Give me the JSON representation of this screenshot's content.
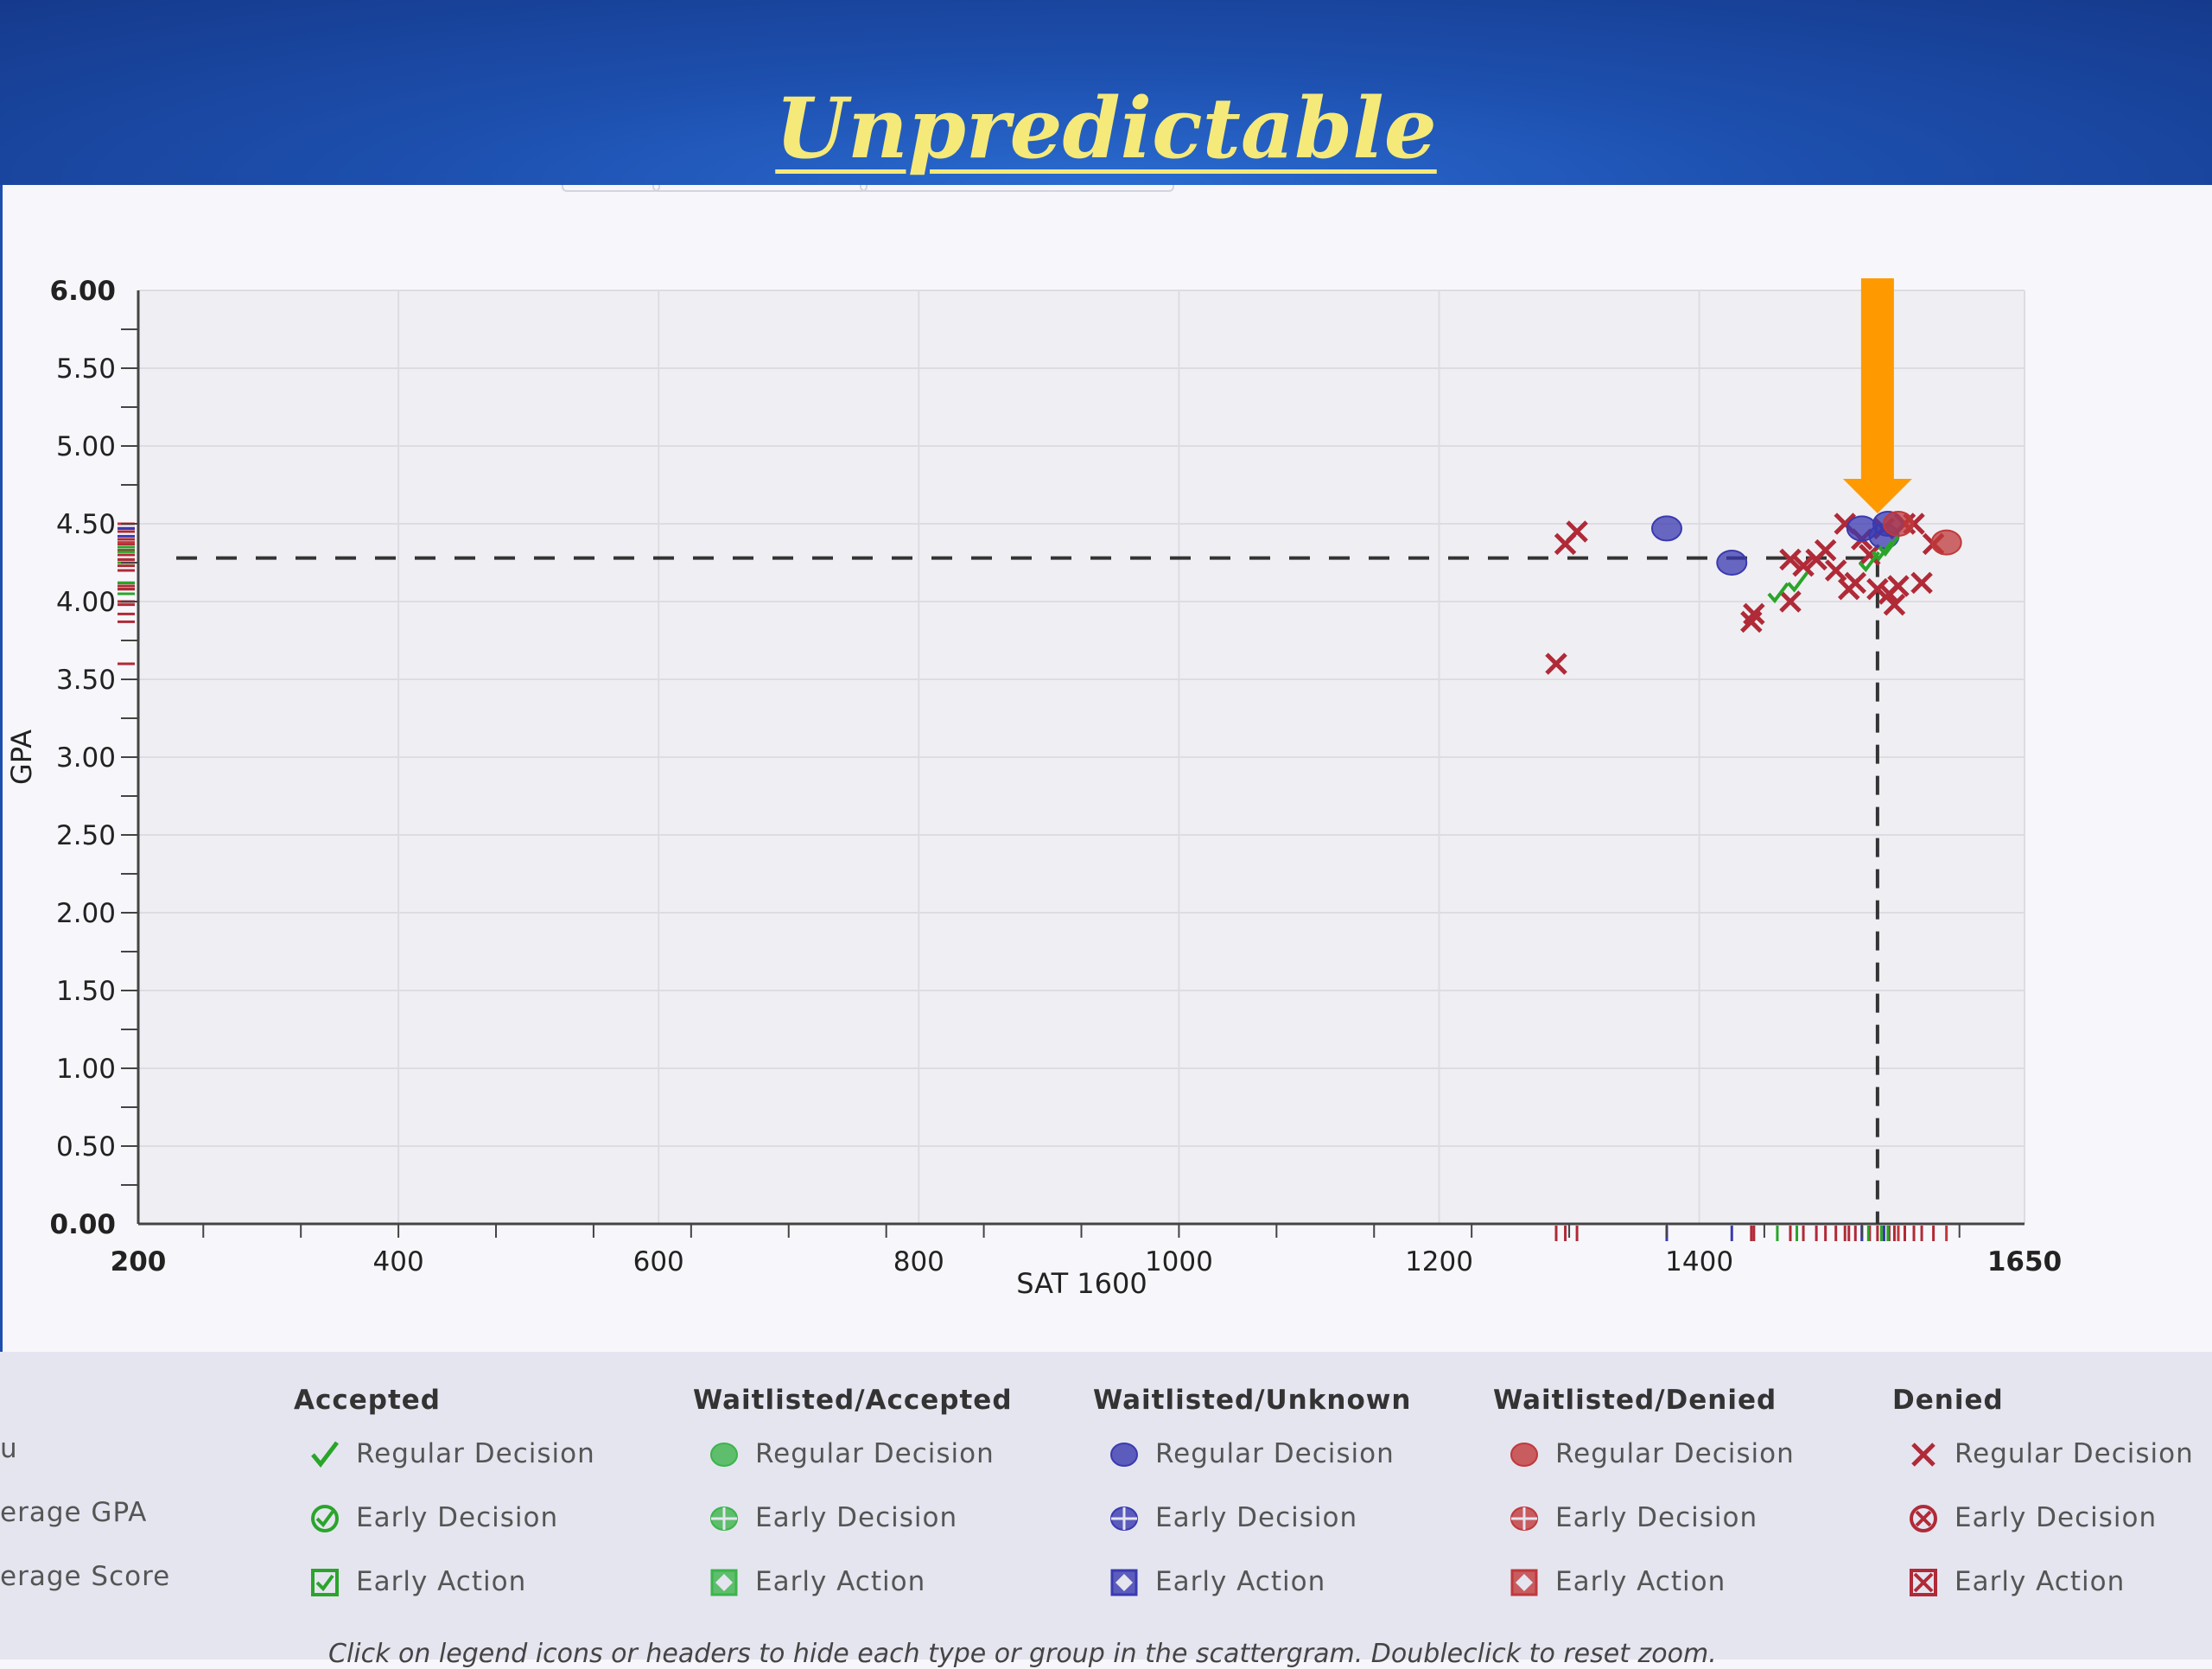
{
  "slide": {
    "title": "Unpredictable"
  },
  "colors": {
    "header_blue": "#1d4fae",
    "title_yellow": "#f5e97a",
    "accepted": "#2aa52a",
    "waitlisted_accepted": "#3cb44b",
    "waitlisted_unknown": "#3a3ab0",
    "waitlisted_denied": "#c0393b",
    "denied": "#b02a37",
    "arrow_orange": "#ff9900"
  },
  "chart_data": {
    "type": "scatter",
    "xlabel": "SAT 1600",
    "ylabel": "GPA",
    "xlim": [
      200,
      1650
    ],
    "ylim": [
      0,
      6
    ],
    "x_ticks": [
      {
        "value": 200,
        "label": "200",
        "bold": true
      },
      {
        "value": 400,
        "label": "400",
        "bold": false
      },
      {
        "value": 600,
        "label": "600",
        "bold": false
      },
      {
        "value": 800,
        "label": "800",
        "bold": false
      },
      {
        "value": 1000,
        "label": "1000",
        "bold": false
      },
      {
        "value": 1200,
        "label": "1200",
        "bold": false
      },
      {
        "value": 1400,
        "label": "1400",
        "bold": false
      },
      {
        "value": 1650,
        "label": "1650",
        "bold": true
      }
    ],
    "y_ticks": [
      {
        "value": 0,
        "label": "0.00",
        "bold": true
      },
      {
        "value": 0.5,
        "label": "0.50",
        "bold": false
      },
      {
        "value": 1.0,
        "label": "1.00",
        "bold": false
      },
      {
        "value": 1.5,
        "label": "1.50",
        "bold": false
      },
      {
        "value": 2.0,
        "label": "2.00",
        "bold": false
      },
      {
        "value": 2.5,
        "label": "2.50",
        "bold": false
      },
      {
        "value": 3.0,
        "label": "3.00",
        "bold": false
      },
      {
        "value": 3.5,
        "label": "3.50",
        "bold": false
      },
      {
        "value": 4.0,
        "label": "4.00",
        "bold": false
      },
      {
        "value": 4.5,
        "label": "4.50",
        "bold": false
      },
      {
        "value": 5.0,
        "label": "5.00",
        "bold": false
      },
      {
        "value": 5.5,
        "label": "5.50",
        "bold": false
      },
      {
        "value": 6.0,
        "label": "6.00",
        "bold": true
      }
    ],
    "grid": true,
    "average_gpa_line": 4.28,
    "highlight_x": 1537,
    "arrow_annotation_x": 1537,
    "series": [
      {
        "group": "Denied",
        "type": "Regular Decision",
        "marker": "x",
        "points": [
          [
            1290,
            3.6
          ],
          [
            1297,
            4.37
          ],
          [
            1306,
            4.45
          ],
          [
            1440,
            3.87
          ],
          [
            1442,
            3.92
          ],
          [
            1470,
            4.0
          ],
          [
            1470,
            4.27
          ],
          [
            1480,
            4.23
          ],
          [
            1490,
            4.27
          ],
          [
            1497,
            4.33
          ],
          [
            1505,
            4.2
          ],
          [
            1512,
            4.5
          ],
          [
            1515,
            4.08
          ],
          [
            1520,
            4.12
          ],
          [
            1525,
            4.4
          ],
          [
            1531,
            4.3
          ],
          [
            1537,
            4.08
          ],
          [
            1542,
            4.47
          ],
          [
            1546,
            4.05
          ],
          [
            1550,
            3.98
          ],
          [
            1553,
            4.1
          ],
          [
            1558,
            4.5
          ],
          [
            1565,
            4.5
          ],
          [
            1571,
            4.12
          ],
          [
            1580,
            4.37
          ]
        ]
      },
      {
        "group": "Waitlisted/Unknown",
        "type": "Regular Decision",
        "marker": "circle",
        "points": [
          [
            1375,
            4.47
          ],
          [
            1425,
            4.25
          ],
          [
            1525,
            4.47
          ],
          [
            1545,
            4.5
          ],
          [
            1542,
            4.42
          ]
        ]
      },
      {
        "group": "Waitlisted/Denied",
        "type": "Regular Decision",
        "marker": "circle",
        "points": [
          [
            1553,
            4.5
          ],
          [
            1590,
            4.38
          ]
        ]
      },
      {
        "group": "Accepted",
        "type": "Regular Decision",
        "marker": "check",
        "points": [
          [
            1460,
            4.05
          ],
          [
            1475,
            4.12
          ],
          [
            1530,
            4.25
          ],
          [
            1540,
            4.32
          ],
          [
            1545,
            4.35
          ]
        ]
      }
    ]
  },
  "legend": {
    "left_labels": [
      "u",
      "erage GPA",
      "erage Score"
    ],
    "groups": [
      {
        "header": "Accepted",
        "kind": "accepted",
        "items": [
          "Regular Decision",
          "Early Decision",
          "Early Action"
        ]
      },
      {
        "header": "Waitlisted/Accepted",
        "kind": "wl_accepted",
        "items": [
          "Regular Decision",
          "Early Decision",
          "Early Action"
        ]
      },
      {
        "header": "Waitlisted/Unknown",
        "kind": "wl_unknown",
        "items": [
          "Regular Decision",
          "Early Decision",
          "Early Action"
        ]
      },
      {
        "header": "Waitlisted/Denied",
        "kind": "wl_denied",
        "items": [
          "Regular Decision",
          "Early Decision",
          "Early Action"
        ]
      },
      {
        "header": "Denied",
        "kind": "denied",
        "items": [
          "Regular Decision",
          "Early Decision",
          "Early Action"
        ]
      }
    ],
    "note": "Click on legend icons or headers to hide each type or group in the scattergram. Doubleclick to reset zoom."
  }
}
